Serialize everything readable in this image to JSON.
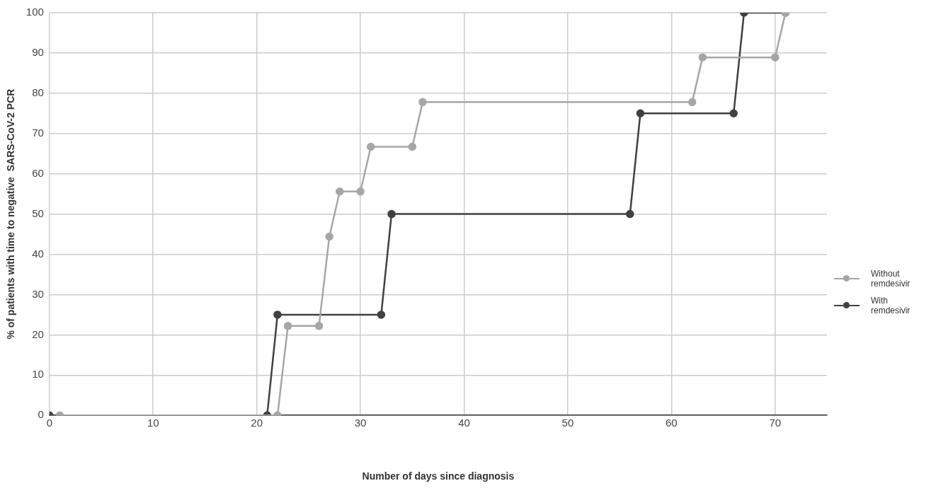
{
  "chart_data": {
    "type": "line",
    "xlabel": "Number of days since diagnosis",
    "ylabel": "% of patients with time to negative  SARS-CoV-2 PCR",
    "xlim": [
      0,
      75
    ],
    "xticks": [
      0,
      10,
      20,
      30,
      40,
      50,
      60,
      70
    ],
    "ylim": [
      0,
      100
    ],
    "yticks": [
      0,
      10,
      20,
      30,
      40,
      50,
      60,
      70,
      80,
      90,
      100
    ],
    "grid": true,
    "legend": "right",
    "marker": "circle",
    "line_style": "solid",
    "series": [
      {
        "name": "Without remdesivir",
        "color": "#a6a6a6",
        "x": [
          1,
          22,
          23,
          26,
          27,
          28,
          30,
          31,
          35,
          36,
          62,
          63,
          70,
          71
        ],
        "values": [
          0,
          0,
          22.2,
          22.2,
          44.4,
          55.6,
          55.6,
          66.7,
          66.7,
          77.8,
          77.8,
          88.9,
          88.9,
          100
        ]
      },
      {
        "name": "With remdesivir",
        "color": "#404040",
        "x": [
          0,
          21,
          22,
          32,
          33,
          56,
          57,
          66,
          67,
          71
        ],
        "values": [
          0,
          0,
          25,
          25,
          50,
          50,
          75,
          75,
          100,
          100
        ]
      }
    ]
  }
}
